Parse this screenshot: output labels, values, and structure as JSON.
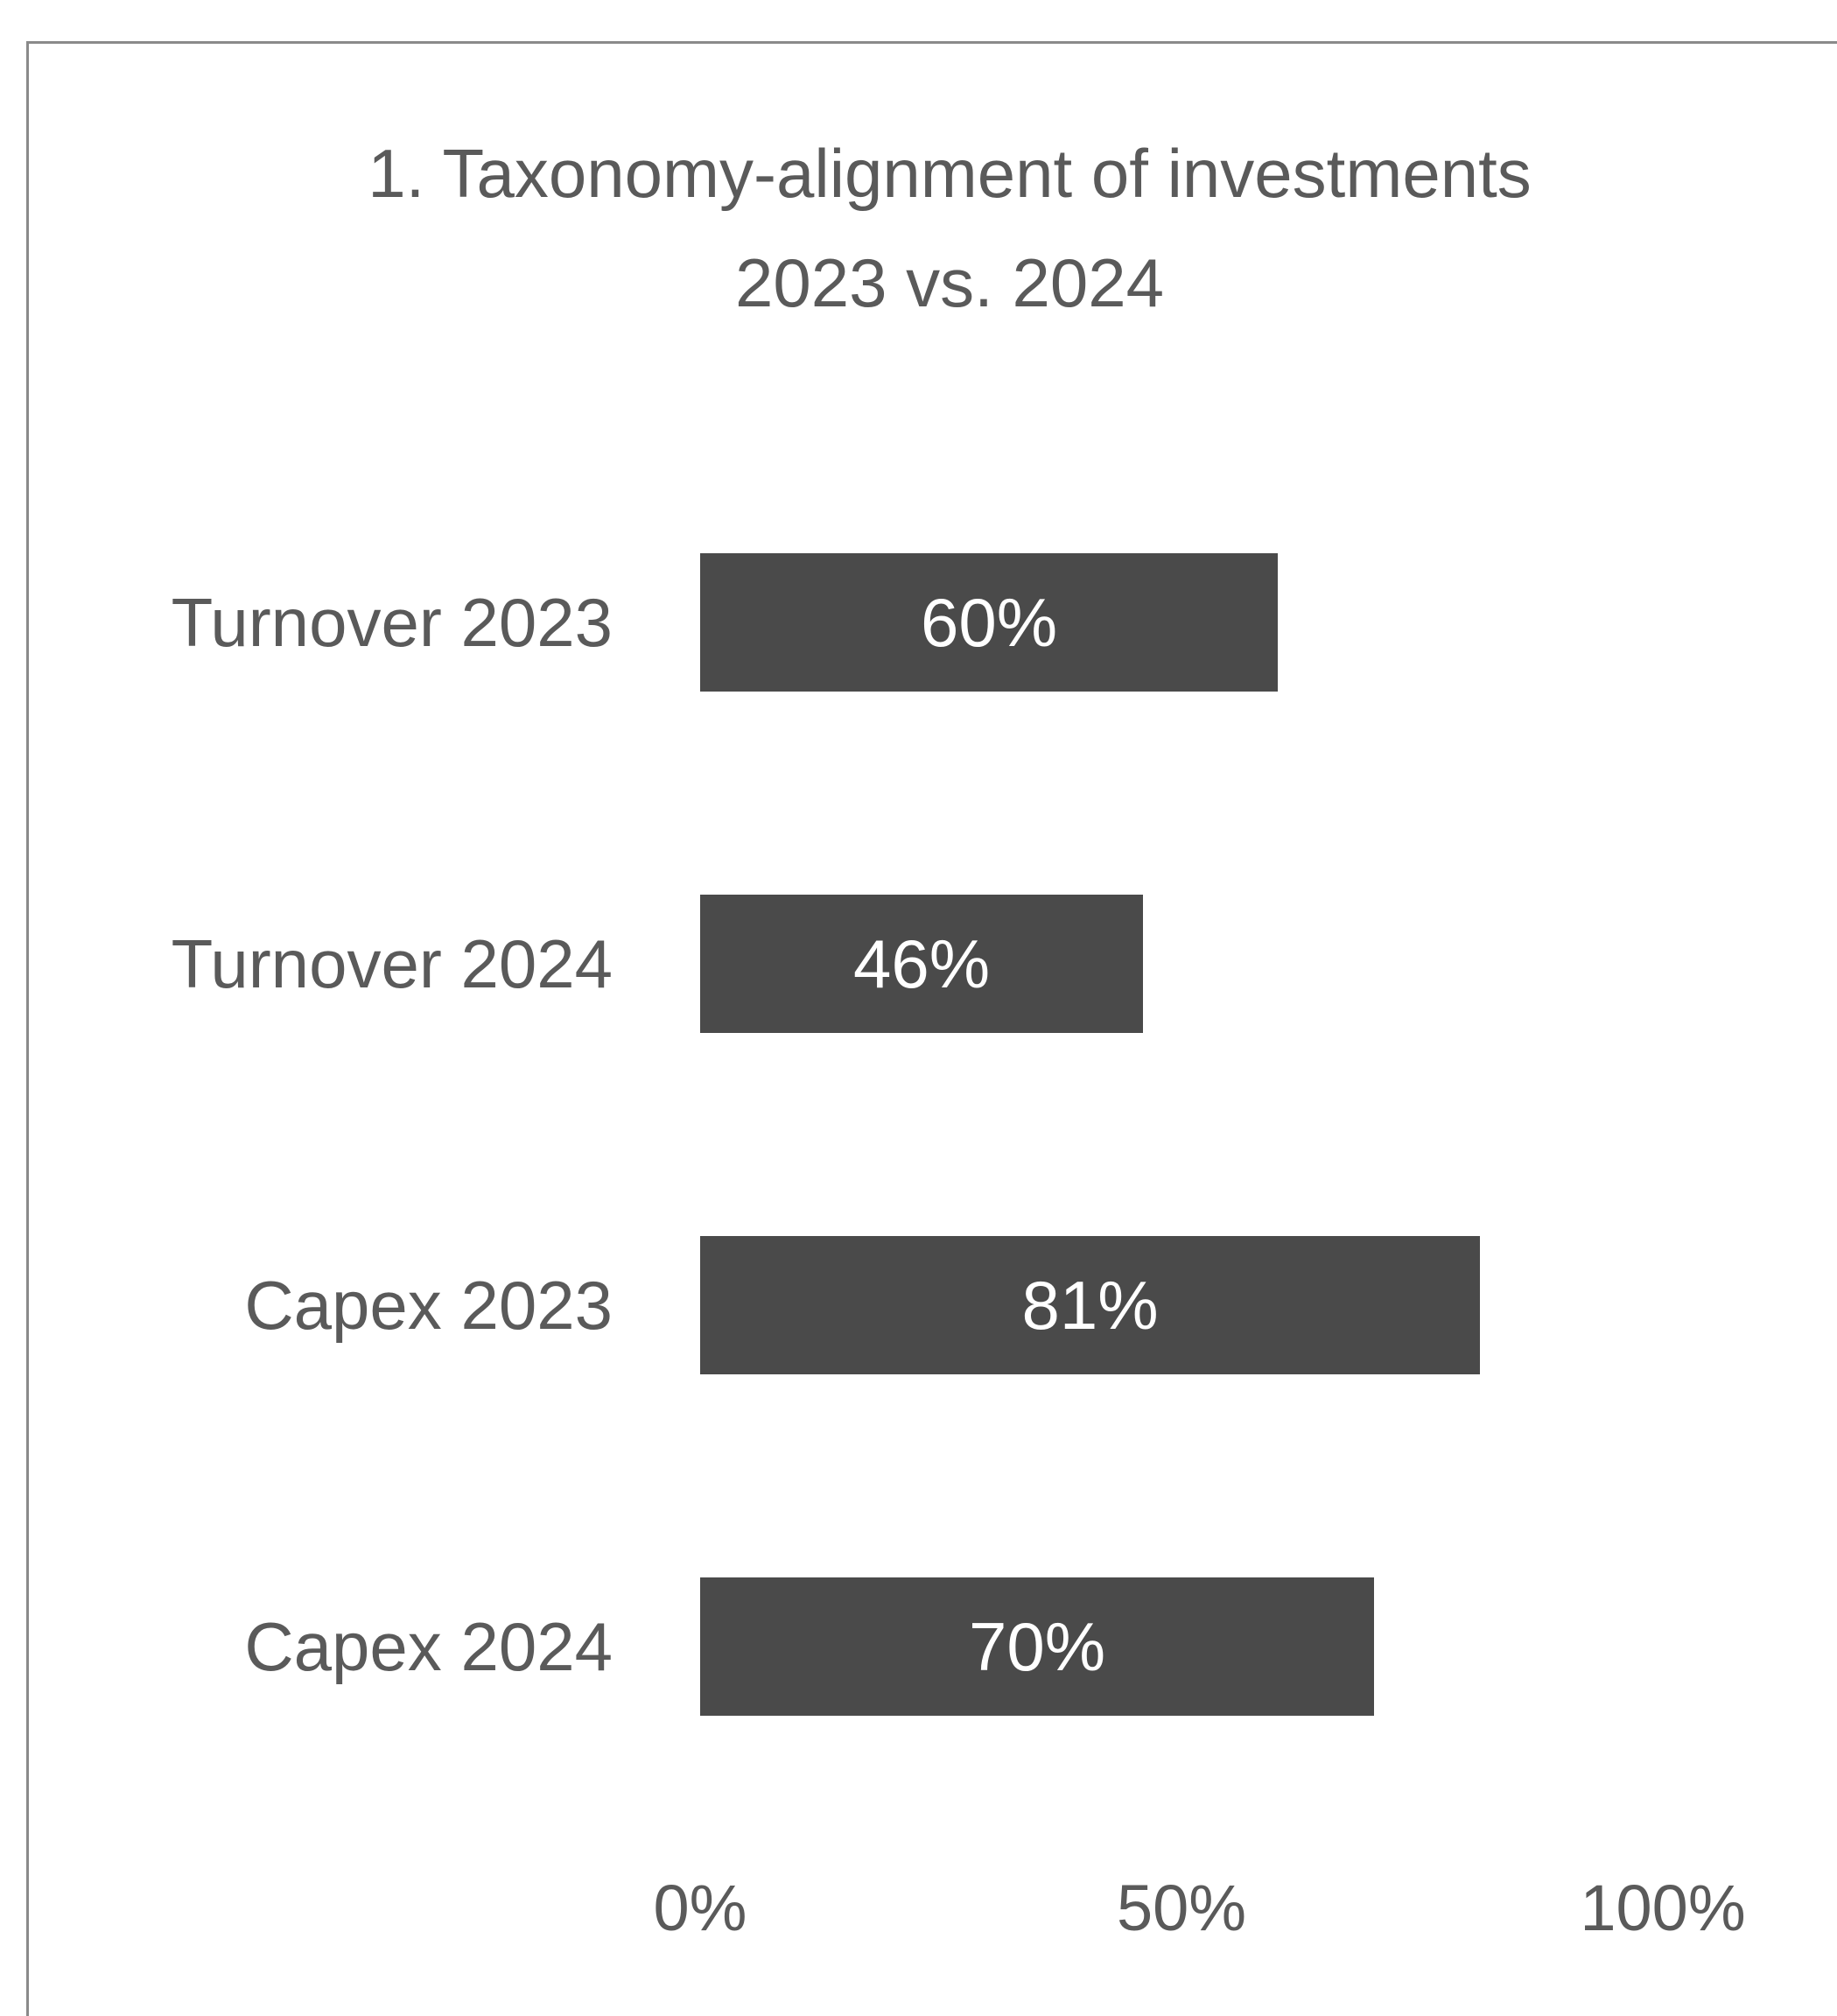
{
  "chart_data": {
    "type": "bar",
    "orientation": "horizontal",
    "title_lines": [
      "1. Taxonomy-alignment of investments",
      "2023 vs. 2024"
    ],
    "categories": [
      "Turnover 2023",
      "Turnover 2024",
      "Capex 2023",
      "Capex 2024"
    ],
    "values": [
      60,
      46,
      81,
      70
    ],
    "data_labels": [
      "60%",
      "46%",
      "81%",
      "70%"
    ],
    "xlim": [
      0,
      100
    ],
    "xticks": [
      0,
      50,
      100
    ],
    "xtick_labels": [
      "0%",
      "50%",
      "100%"
    ],
    "grid": false,
    "bar_color": "#4a4a4a",
    "text_color": "#5a5a5a"
  }
}
